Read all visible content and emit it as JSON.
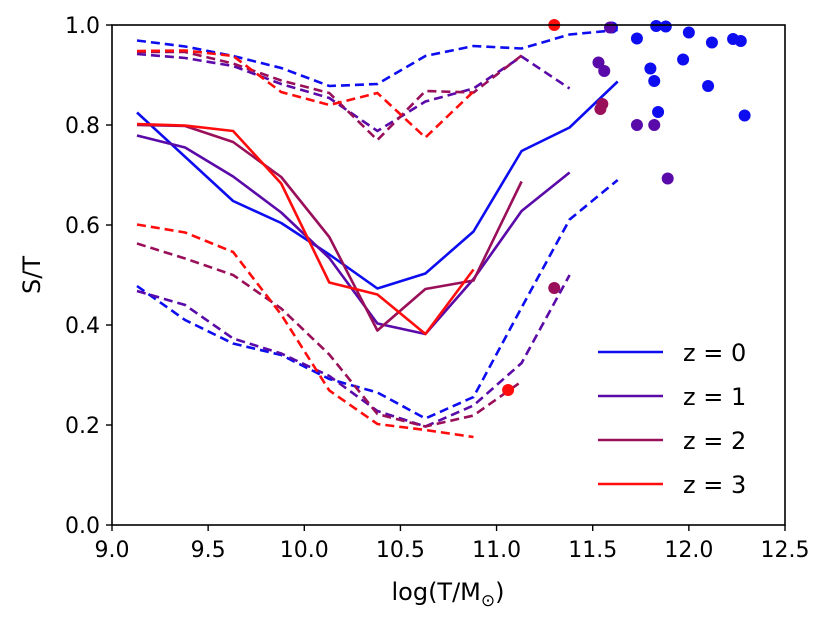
{
  "chart_data": {
    "type": "line",
    "xlabel": "log(T/M",
    "xlabel_sub": "⊙",
    "xlabel_close": ")",
    "ylabel": "S/T",
    "xlim": [
      9.0,
      12.5
    ],
    "ylim": [
      0.0,
      1.0
    ],
    "xticks": [
      "9.0",
      "9.5",
      "10.0",
      "10.5",
      "11.0",
      "11.5",
      "12.0",
      "12.5"
    ],
    "yticks": [
      "0.0",
      "0.2",
      "0.4",
      "0.6",
      "0.8",
      "1.0"
    ],
    "legend_position": "lower-right",
    "series": [
      {
        "name": "z = 0",
        "color": "#0d0df0",
        "solid": [
          [
            9.13,
            0.825
          ],
          [
            9.63,
            0.648
          ],
          [
            9.88,
            0.604
          ],
          [
            10.13,
            0.541
          ],
          [
            10.38,
            0.473
          ],
          [
            10.63,
            0.503
          ],
          [
            10.88,
            0.587
          ],
          [
            11.13,
            0.748
          ],
          [
            11.38,
            0.795
          ],
          [
            11.63,
            0.887
          ]
        ],
        "dash_upper": [
          [
            9.13,
            0.969
          ],
          [
            9.38,
            0.957
          ],
          [
            9.63,
            0.938
          ],
          [
            9.88,
            0.914
          ],
          [
            10.13,
            0.878
          ],
          [
            10.38,
            0.882
          ],
          [
            10.63,
            0.938
          ],
          [
            10.88,
            0.958
          ],
          [
            11.13,
            0.953
          ],
          [
            11.38,
            0.981
          ],
          [
            11.63,
            0.99
          ]
        ],
        "dash_lower": [
          [
            9.13,
            0.478
          ],
          [
            9.38,
            0.41
          ],
          [
            9.63,
            0.363
          ],
          [
            9.88,
            0.34
          ],
          [
            10.13,
            0.292
          ],
          [
            10.38,
            0.265
          ],
          [
            10.63,
            0.213
          ],
          [
            10.88,
            0.256
          ],
          [
            11.13,
            0.435
          ],
          [
            11.38,
            0.611
          ],
          [
            11.63,
            0.69
          ]
        ],
        "points": [
          [
            11.6,
            0.995
          ],
          [
            11.73,
            0.973
          ],
          [
            11.8,
            0.913
          ],
          [
            11.82,
            0.888
          ],
          [
            11.84,
            0.826
          ],
          [
            11.83,
            0.998
          ],
          [
            11.88,
            0.997
          ],
          [
            11.97,
            0.931
          ],
          [
            12.0,
            0.985
          ],
          [
            12.1,
            0.878
          ],
          [
            12.12,
            0.965
          ],
          [
            12.23,
            0.972
          ],
          [
            12.27,
            0.968
          ],
          [
            12.29,
            0.819
          ]
        ]
      },
      {
        "name": "z = 1",
        "color": "#5a0aa8",
        "solid": [
          [
            9.13,
            0.779
          ],
          [
            9.38,
            0.755
          ],
          [
            9.63,
            0.697
          ],
          [
            9.88,
            0.625
          ],
          [
            10.13,
            0.534
          ],
          [
            10.38,
            0.403
          ],
          [
            10.63,
            0.382
          ],
          [
            10.88,
            0.492
          ],
          [
            11.13,
            0.628
          ],
          [
            11.38,
            0.705
          ]
        ],
        "dash_upper": [
          [
            9.13,
            0.942
          ],
          [
            9.38,
            0.934
          ],
          [
            9.63,
            0.918
          ],
          [
            9.88,
            0.882
          ],
          [
            10.13,
            0.854
          ],
          [
            10.38,
            0.788
          ],
          [
            10.63,
            0.847
          ],
          [
            10.88,
            0.873
          ],
          [
            11.13,
            0.937
          ],
          [
            11.38,
            0.873
          ]
        ],
        "dash_lower": [
          [
            9.13,
            0.468
          ],
          [
            9.38,
            0.44
          ],
          [
            9.63,
            0.373
          ],
          [
            9.88,
            0.343
          ],
          [
            10.13,
            0.298
          ],
          [
            10.38,
            0.228
          ],
          [
            10.63,
            0.197
          ],
          [
            10.88,
            0.239
          ],
          [
            11.13,
            0.324
          ],
          [
            11.38,
            0.5
          ]
        ],
        "points": [
          [
            11.53,
            0.925
          ],
          [
            11.56,
            0.908
          ],
          [
            11.59,
            0.995
          ],
          [
            11.73,
            0.8
          ],
          [
            11.82,
            0.8
          ],
          [
            11.89,
            0.693
          ]
        ]
      },
      {
        "name": "z = 2",
        "color": "#990f5a",
        "solid": [
          [
            9.13,
            0.8
          ],
          [
            9.38,
            0.798
          ],
          [
            9.63,
            0.766
          ],
          [
            9.88,
            0.696
          ],
          [
            10.13,
            0.576
          ],
          [
            10.38,
            0.389
          ],
          [
            10.63,
            0.472
          ],
          [
            10.88,
            0.489
          ],
          [
            11.13,
            0.687
          ]
        ],
        "dash_upper": [
          [
            9.13,
            0.946
          ],
          [
            9.38,
            0.946
          ],
          [
            9.63,
            0.923
          ],
          [
            9.88,
            0.889
          ],
          [
            10.13,
            0.864
          ],
          [
            10.38,
            0.77
          ],
          [
            10.63,
            0.868
          ],
          [
            10.88,
            0.865
          ],
          [
            11.13,
            0.939
          ]
        ],
        "dash_lower": [
          [
            9.13,
            0.563
          ],
          [
            9.38,
            0.533
          ],
          [
            9.63,
            0.5
          ],
          [
            9.88,
            0.433
          ],
          [
            10.13,
            0.341
          ],
          [
            10.38,
            0.222
          ],
          [
            10.63,
            0.197
          ],
          [
            10.88,
            0.219
          ],
          [
            11.13,
            0.287
          ]
        ],
        "points": [
          [
            11.3,
            0.474
          ],
          [
            11.55,
            0.842
          ],
          [
            11.54,
            0.832
          ]
        ]
      },
      {
        "name": "z = 3",
        "color": "#ff0d0d",
        "solid": [
          [
            9.13,
            0.802
          ],
          [
            9.38,
            0.799
          ],
          [
            9.63,
            0.788
          ],
          [
            9.88,
            0.683
          ],
          [
            10.13,
            0.485
          ],
          [
            10.38,
            0.461
          ],
          [
            10.63,
            0.382
          ],
          [
            10.88,
            0.511
          ]
        ],
        "dash_upper": [
          [
            9.13,
            0.948
          ],
          [
            9.38,
            0.949
          ],
          [
            9.63,
            0.938
          ],
          [
            9.88,
            0.866
          ],
          [
            10.13,
            0.84
          ],
          [
            10.38,
            0.864
          ],
          [
            10.63,
            0.775
          ],
          [
            10.88,
            0.867
          ]
        ],
        "dash_lower": [
          [
            9.13,
            0.601
          ],
          [
            9.38,
            0.585
          ],
          [
            9.63,
            0.546
          ],
          [
            9.88,
            0.421
          ],
          [
            10.13,
            0.269
          ],
          [
            10.38,
            0.202
          ],
          [
            10.63,
            0.19
          ],
          [
            10.88,
            0.176
          ]
        ],
        "points": [
          [
            11.06,
            0.27
          ],
          [
            11.3,
            1.0
          ]
        ]
      }
    ]
  }
}
